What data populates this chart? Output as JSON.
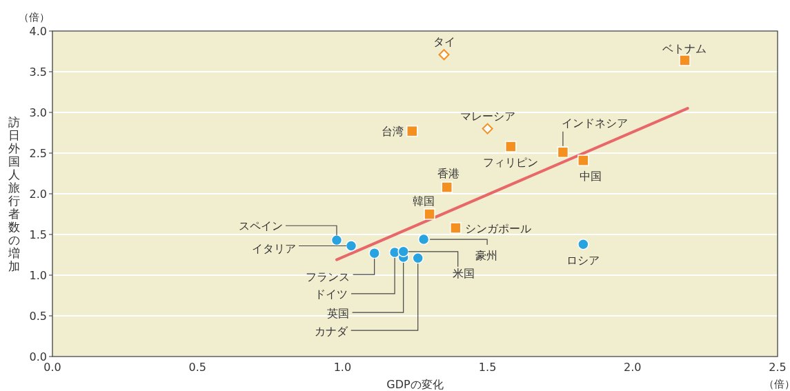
{
  "chart_data": {
    "type": "scatter",
    "xlabel": "GDPの変化",
    "ylabel": "訪日外国人旅行者数の増加",
    "xlim": [
      0,
      2.5
    ],
    "xticks": [
      {
        "value": 0,
        "label": "0.0"
      },
      0.5,
      {
        "value": 1,
        "label": "1.0"
      },
      1.5,
      {
        "value": 2,
        "label": "2.0"
      },
      2.5
    ],
    "ylim": [
      0,
      4
    ],
    "yticks": [
      {
        "value": 0,
        "label": "0.0"
      },
      0.5,
      {
        "value": 1,
        "label": "1.0"
      },
      1.5,
      {
        "value": 2,
        "label": "2.0"
      },
      2.5,
      {
        "value": 3,
        "label": "3.0"
      },
      3.5,
      {
        "value": 4,
        "label": "4.0"
      }
    ],
    "grid": "y",
    "series": [
      {
        "type": "scatter",
        "marker": "circle",
        "color": "#29a3e0",
        "x": [
          0.98,
          1.03,
          1.11,
          1.18,
          1.21,
          1.21,
          1.26,
          1.28,
          1.83
        ],
        "values": [
          1.43,
          1.36,
          1.27,
          1.28,
          1.22,
          1.29,
          1.21,
          1.44,
          1.38
        ]
      },
      {
        "type": "scatter",
        "marker": "square",
        "color": "#f39020",
        "x": [
          1.3,
          1.39,
          1.36,
          1.24,
          1.58,
          1.76,
          1.83,
          2.18
        ],
        "values": [
          1.75,
          1.58,
          2.08,
          2.77,
          2.58,
          2.51,
          2.41,
          3.64
        ]
      },
      {
        "type": "scatter",
        "marker": "diamond",
        "color": "#f39020",
        "x": [
          1.35,
          1.5
        ],
        "values": [
          3.71,
          2.8
        ]
      },
      {
        "type": "line",
        "marker": "none",
        "color": "#e8686a",
        "x": [
          0.98,
          2.19
        ],
        "values": [
          1.19,
          3.05
        ]
      }
    ],
    "annotations": [
      {
        "text": "スペイン",
        "x": 0.98,
        "y": 1.43
      },
      {
        "text": "イタリア",
        "x": 1.03,
        "y": 1.36
      },
      {
        "text": "フランス",
        "x": 1.11,
        "y": 1.27
      },
      {
        "text": "ドイツ",
        "x": 1.18,
        "y": 1.28
      },
      {
        "text": "英国",
        "x": 1.21,
        "y": 1.22
      },
      {
        "text": "米国",
        "x": 1.21,
        "y": 1.29
      },
      {
        "text": "カナダ",
        "x": 1.26,
        "y": 1.21
      },
      {
        "text": "豪州",
        "x": 1.28,
        "y": 1.44
      },
      {
        "text": "ロシア",
        "x": 1.83,
        "y": 1.38
      },
      {
        "text": "韓国",
        "x": 1.3,
        "y": 1.75
      },
      {
        "text": "シンガポール",
        "x": 1.39,
        "y": 1.58
      },
      {
        "text": "香港",
        "x": 1.36,
        "y": 2.08
      },
      {
        "text": "台湾",
        "x": 1.24,
        "y": 2.77
      },
      {
        "text": "フィリピン",
        "x": 1.58,
        "y": 2.58
      },
      {
        "text": "インドネシア",
        "x": 1.76,
        "y": 2.51
      },
      {
        "text": "中国",
        "x": 1.83,
        "y": 2.41
      },
      {
        "text": "ベトナム",
        "x": 2.18,
        "y": 3.64
      },
      {
        "text": "タイ",
        "x": 1.35,
        "y": 3.71
      },
      {
        "text": "マレーシア",
        "x": 1.5,
        "y": 2.8
      },
      "（倍）",
      "（倍）"
    ]
  }
}
